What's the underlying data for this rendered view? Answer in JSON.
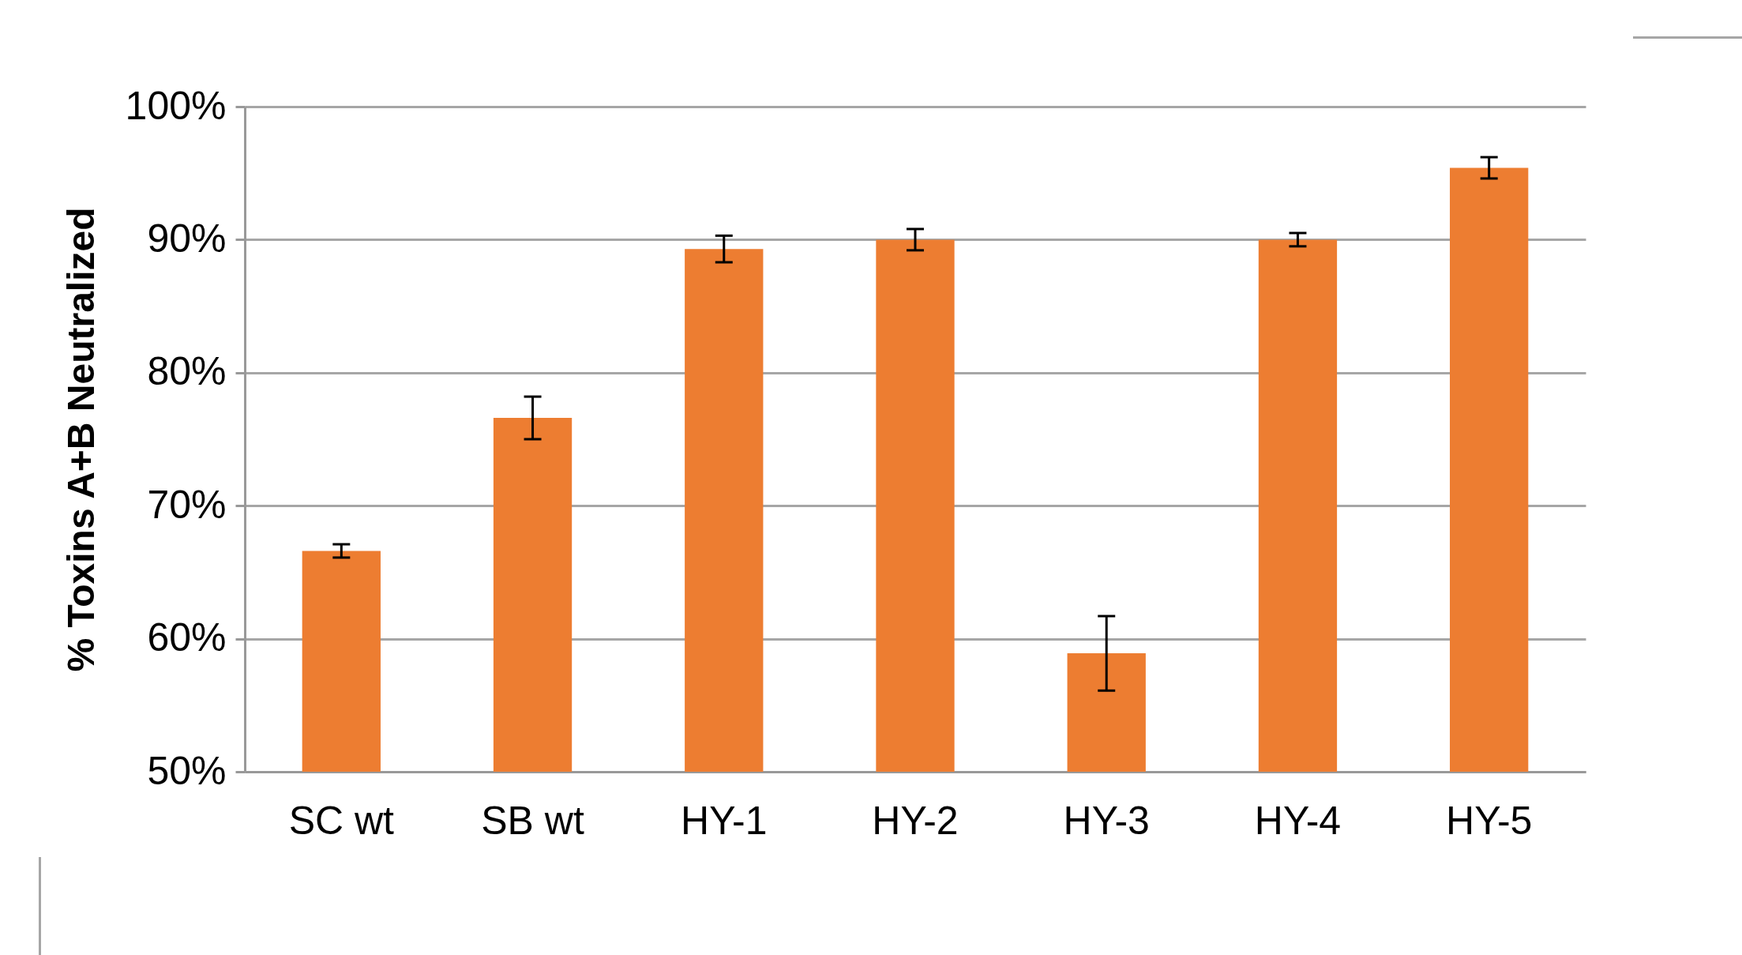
{
  "chart_data": {
    "type": "bar",
    "ylabel": "% Toxins A+B Neutralized",
    "categories": [
      "SC wt",
      "SB wt",
      "HY-1",
      "HY-2",
      "HY-3",
      "HY-4",
      "HY-5"
    ],
    "values": [
      66.6,
      76.6,
      89.3,
      90.0,
      58.9,
      90.0,
      95.4
    ],
    "errors": [
      0.5,
      1.6,
      1.0,
      0.8,
      2.8,
      0.5,
      0.8
    ],
    "color": "#ed7d31",
    "ylim": [
      50,
      100
    ],
    "yticks": [
      {
        "value": 50,
        "label": "50%"
      },
      {
        "value": 60,
        "label": "60%"
      },
      {
        "value": 70,
        "label": "70%"
      },
      {
        "value": 80,
        "label": "80%"
      },
      {
        "value": 90,
        "label": "90%"
      },
      {
        "value": 100,
        "label": "100%"
      }
    ],
    "grid": "y"
  }
}
